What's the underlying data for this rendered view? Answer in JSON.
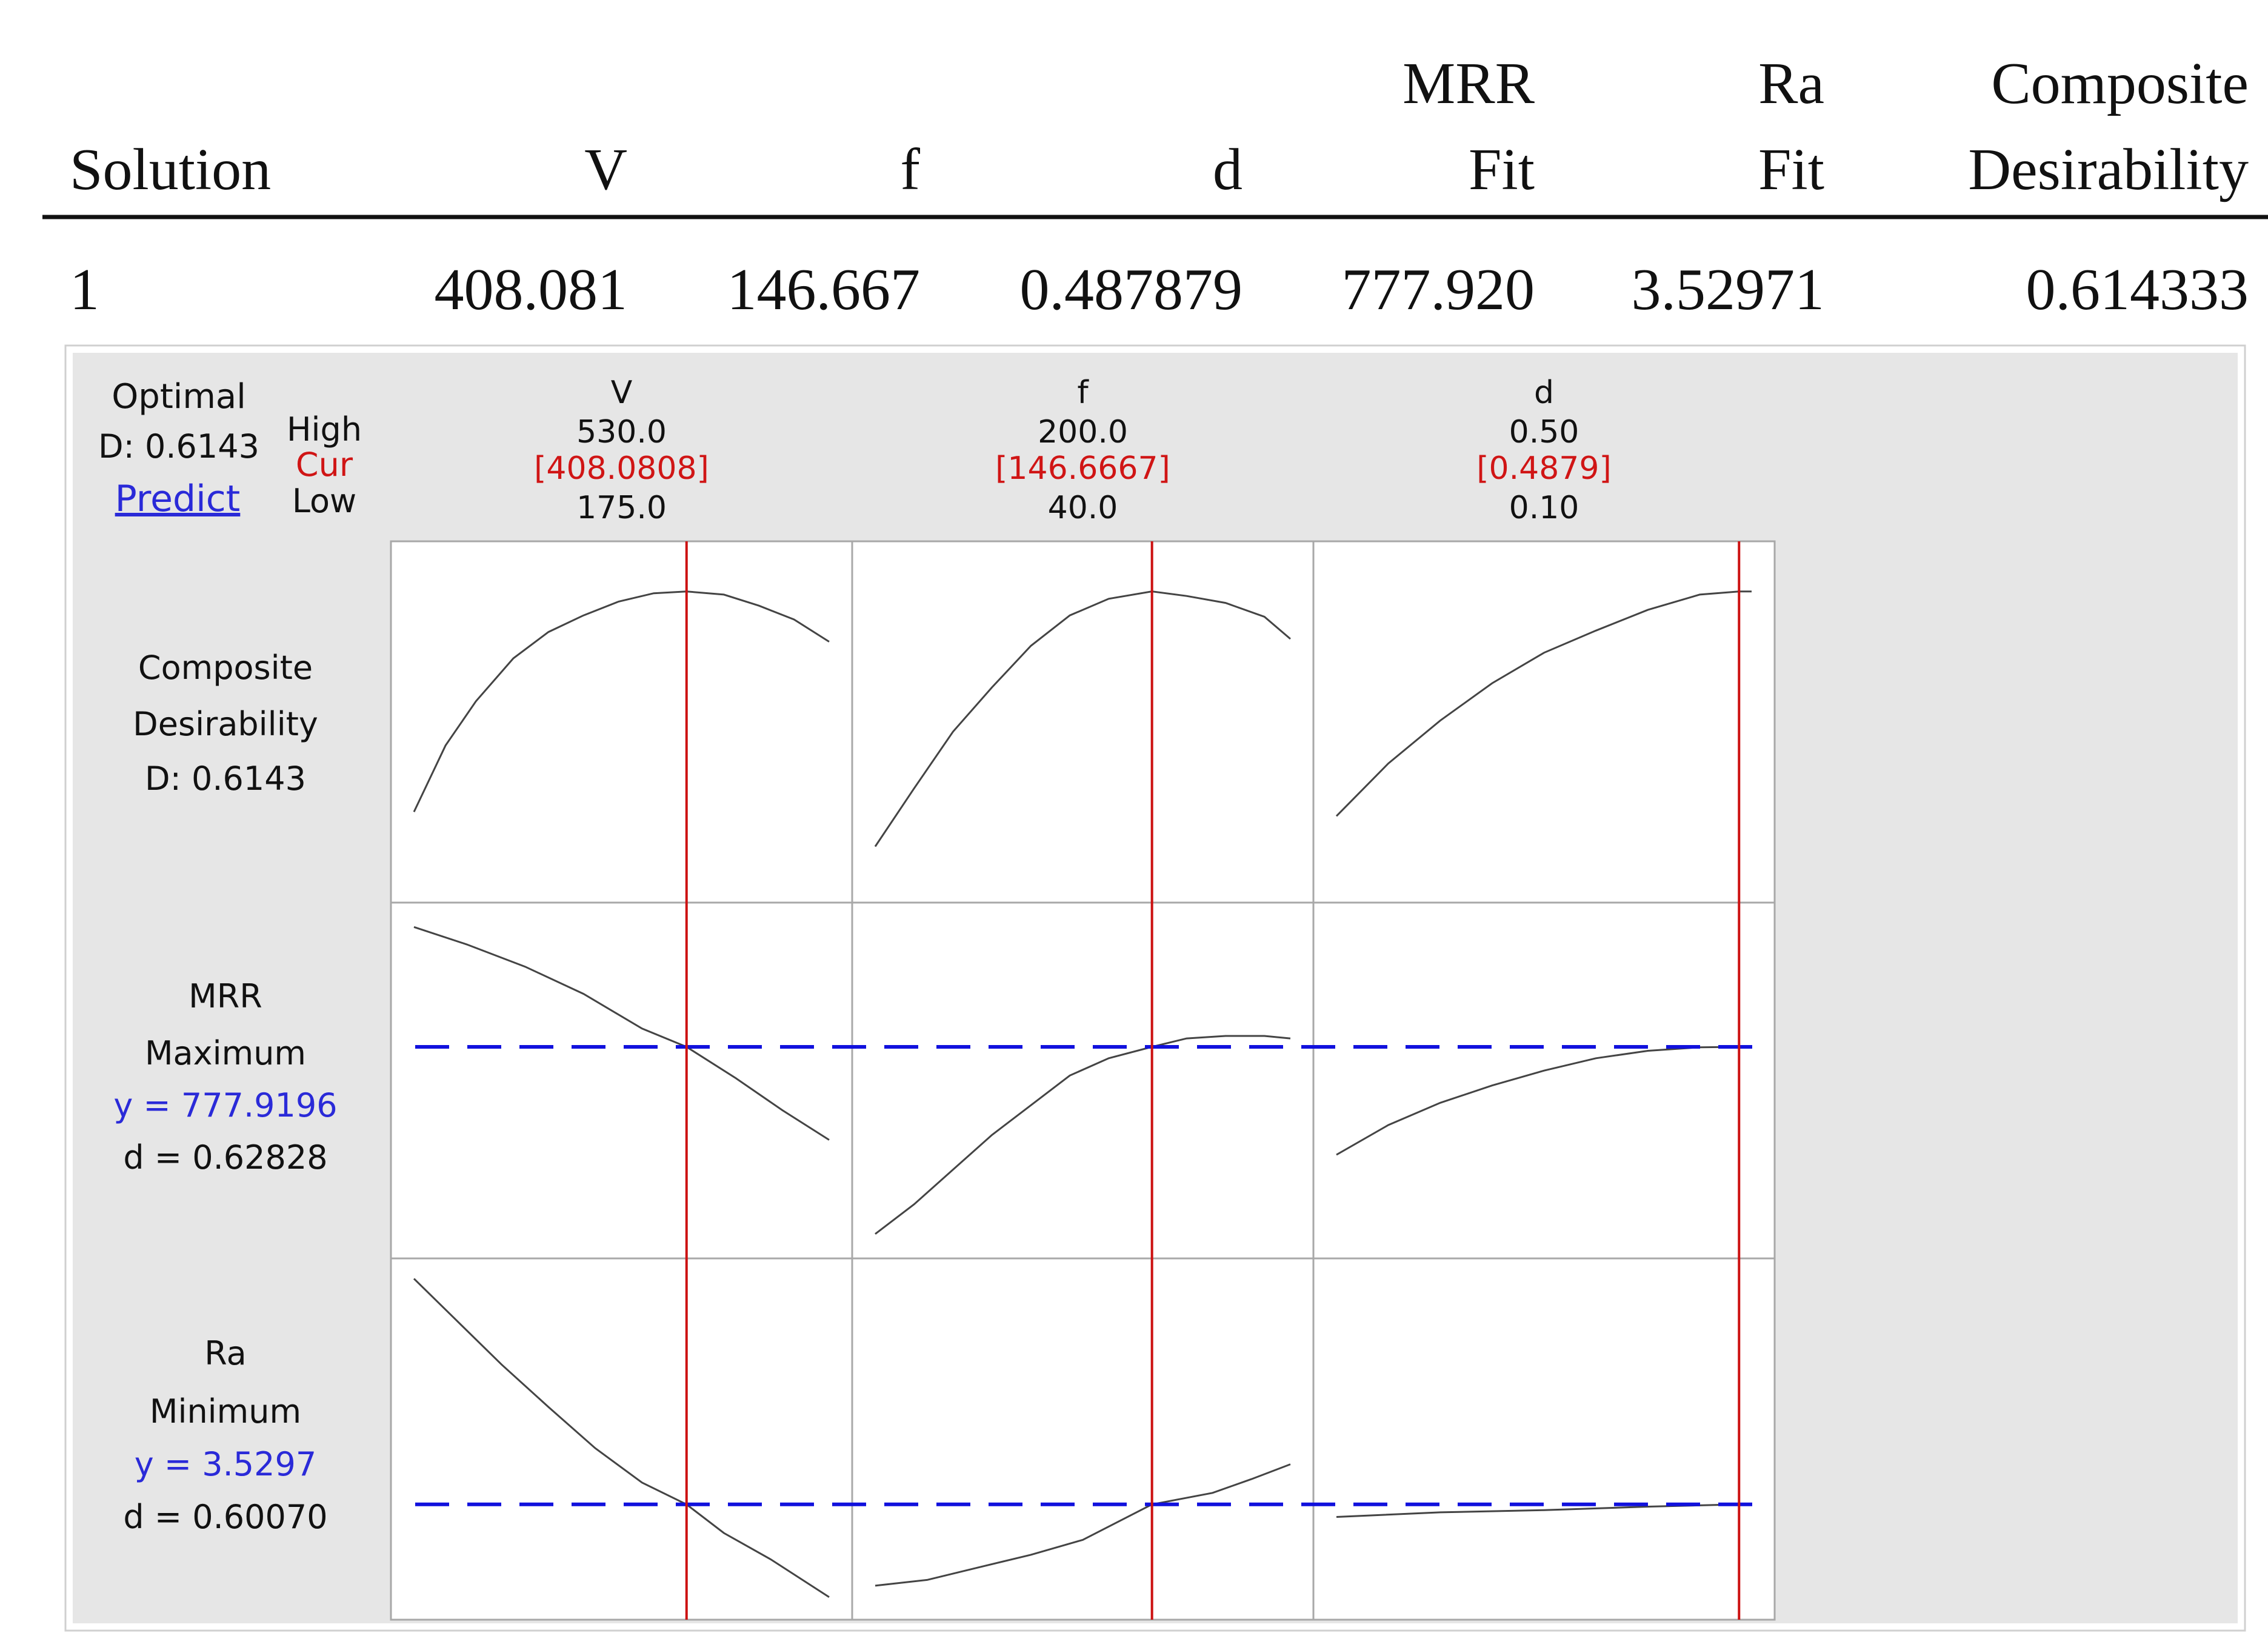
{
  "table": {
    "headers": [
      {
        "line1": "",
        "line2": "Solution"
      },
      {
        "line1": "",
        "line2": "V"
      },
      {
        "line1": "",
        "line2": "f"
      },
      {
        "line1": "",
        "line2": "d"
      },
      {
        "line1": "MRR",
        "line2": "Fit"
      },
      {
        "line1": "Ra",
        "line2": "Fit"
      },
      {
        "line1": "Composite",
        "line2": "Desirability"
      }
    ],
    "row": [
      "1",
      "408.081",
      "146.667",
      "0.487879",
      "777.920",
      "3.52971",
      "0.614333"
    ]
  },
  "optimizer": {
    "optimal_label": "Optimal",
    "d_label": "D: 0.6143",
    "predict_label": "Predict",
    "high_label": "High",
    "cur_label": "Cur",
    "low_label": "Low",
    "colors": {
      "panel_bg": "#e6e6e6",
      "current_line": "#cc1111",
      "target_line": "#1111dd",
      "curve": "#444444",
      "cur_text": "#d01515",
      "link_text": "#2a2ad8",
      "y_text": "#2a2ad8"
    }
  },
  "chart_data": {
    "type": "line",
    "title": "",
    "factors": [
      {
        "name": "V",
        "high": "530.0",
        "cur": "[408.0808]",
        "low": "175.0",
        "low_value": 175.0,
        "high_value": 530.0,
        "cur_value": 408.0808
      },
      {
        "name": "f",
        "high": "200.0",
        "cur": "[146.6667]",
        "low": "40.0",
        "low_value": 40.0,
        "high_value": 200.0,
        "cur_value": 146.6667
      },
      {
        "name": "d",
        "high": "0.50",
        "cur": "[0.4879]",
        "low": "0.10",
        "low_value": 0.1,
        "high_value": 0.5,
        "cur_value": 0.4879
      }
    ],
    "responses": [
      {
        "name": "Composite",
        "goal": "Desirability",
        "y_label": "",
        "d_label": "D: 0.6143",
        "has_target": false,
        "ylim": [
          0.4,
          0.64
        ],
        "curves": [
          [
            [
              175,
              0.455
            ],
            [
              202,
              0.503
            ],
            [
              228,
              0.535
            ],
            [
              260,
              0.566
            ],
            [
              290,
              0.585
            ],
            [
              320,
              0.597
            ],
            [
              350,
              0.607
            ],
            [
              380,
              0.613
            ],
            [
              408.08,
              0.6143
            ],
            [
              440,
              0.612
            ],
            [
              470,
              0.604
            ],
            [
              500,
              0.594
            ],
            [
              530,
              0.578
            ]
          ],
          [
            [
              40,
              0.43
            ],
            [
              55,
              0.472
            ],
            [
              70,
              0.513
            ],
            [
              85,
              0.545
            ],
            [
              100,
              0.575
            ],
            [
              115,
              0.597
            ],
            [
              130,
              0.609
            ],
            [
              146.67,
              0.6143
            ],
            [
              160,
              0.611
            ],
            [
              175,
              0.606
            ],
            [
              190,
              0.596
            ],
            [
              200,
              0.58
            ]
          ],
          [
            [
              0.1,
              0.452
            ],
            [
              0.15,
              0.49
            ],
            [
              0.2,
              0.521
            ],
            [
              0.25,
              0.548
            ],
            [
              0.3,
              0.57
            ],
            [
              0.35,
              0.586
            ],
            [
              0.4,
              0.601
            ],
            [
              0.45,
              0.612
            ],
            [
              0.4879,
              0.6143
            ],
            [
              0.5,
              0.6143
            ]
          ]
        ]
      },
      {
        "name": "MRR",
        "goal": "Maximum",
        "y_label": "y = 777.9196",
        "d_label": "d = 0.62828",
        "has_target": true,
        "target_value": 777.9196,
        "ylim": [
          380,
          1040
        ],
        "curves": [
          [
            [
              175,
              1020
            ],
            [
              220,
              985
            ],
            [
              270,
              940
            ],
            [
              320,
              885
            ],
            [
              370,
              815
            ],
            [
              408.08,
              777.92
            ],
            [
              450,
              715
            ],
            [
              490,
              650
            ],
            [
              530,
              590
            ]
          ],
          [
            [
              40,
              400
            ],
            [
              55,
              460
            ],
            [
              70,
              530
            ],
            [
              85,
              600
            ],
            [
              100,
              660
            ],
            [
              115,
              720
            ],
            [
              130,
              755
            ],
            [
              146.67,
              777.92
            ],
            [
              160,
              795
            ],
            [
              175,
              800
            ],
            [
              190,
              800
            ],
            [
              200,
              795
            ]
          ],
          [
            [
              0.1,
              560
            ],
            [
              0.15,
              620
            ],
            [
              0.2,
              665
            ],
            [
              0.25,
              700
            ],
            [
              0.3,
              730
            ],
            [
              0.35,
              755
            ],
            [
              0.4,
              770
            ],
            [
              0.45,
              777
            ],
            [
              0.4879,
              777.92
            ],
            [
              0.5,
              778
            ]
          ]
        ]
      },
      {
        "name": "Ra",
        "goal": "Minimum",
        "y_label": "y = 3.5297",
        "d_label": "d = 0.60070",
        "has_target": true,
        "target_value": 3.5297,
        "ylim": [
          2.65,
          5.55
        ],
        "curves": [
          [
            [
              175,
              5.5
            ],
            [
              210,
              5.15
            ],
            [
              250,
              4.75
            ],
            [
              290,
              4.38
            ],
            [
              330,
              4.02
            ],
            [
              370,
              3.72
            ],
            [
              408.08,
              3.5297
            ],
            [
              440,
              3.28
            ],
            [
              480,
              3.05
            ],
            [
              530,
              2.72
            ]
          ],
          [
            [
              40,
              2.82
            ],
            [
              60,
              2.87
            ],
            [
              80,
              2.98
            ],
            [
              100,
              3.09
            ],
            [
              120,
              3.22
            ],
            [
              146.67,
              3.5297
            ],
            [
              170,
              3.63
            ],
            [
              185,
              3.75
            ],
            [
              200,
              3.88
            ]
          ],
          [
            [
              0.1,
              3.42
            ],
            [
              0.2,
              3.46
            ],
            [
              0.3,
              3.48
            ],
            [
              0.4,
              3.51
            ],
            [
              0.4879,
              3.5297
            ],
            [
              0.5,
              3.53
            ]
          ]
        ]
      }
    ]
  }
}
